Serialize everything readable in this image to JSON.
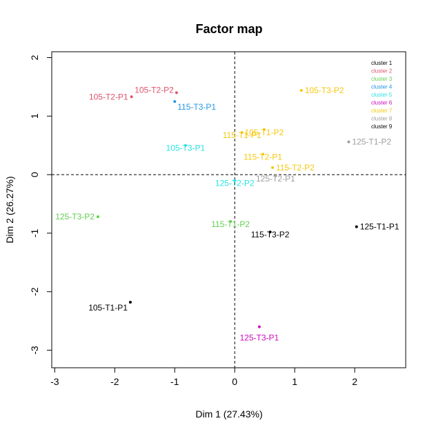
{
  "chart_data": {
    "type": "scatter",
    "title": "Factor map",
    "xlabel": "Dim 1 (27.43%)",
    "ylabel": "Dim 2 (26.27%)",
    "xlim": [
      -3.05,
      2.85
    ],
    "ylim": [
      -3.3,
      2.1
    ],
    "xticks": [
      "-3",
      "-2",
      "-1",
      "0",
      "1",
      "2"
    ],
    "yticks": [
      "-3",
      "-2",
      "-1",
      "0",
      "1",
      "2"
    ],
    "grid": false,
    "reference_lines": {
      "x": 0,
      "y": 0,
      "style": "dashed"
    },
    "legend": {
      "position": "top-right",
      "entries": [
        {
          "label": "cluster 1",
          "color": "#000000"
        },
        {
          "label": "cluster 2",
          "color": "#DF536B"
        },
        {
          "label": "cluster 3",
          "color": "#61D04F"
        },
        {
          "label": "cluster 4",
          "color": "#2297E6"
        },
        {
          "label": "cluster 5",
          "color": "#28E2E5"
        },
        {
          "label": "cluster 6",
          "color": "#CD0BBC"
        },
        {
          "label": "cluster 7",
          "color": "#F5C710"
        },
        {
          "label": "cluster 8",
          "color": "#9E9E9E"
        },
        {
          "label": "cluster 9",
          "color": "#000000"
        }
      ]
    },
    "points": [
      {
        "label": "105-T2-P1",
        "x": -1.72,
        "y": 1.33,
        "cluster": 2,
        "anchor": "left"
      },
      {
        "label": "105-T2-P2",
        "x": -0.97,
        "y": 1.4,
        "cluster": 2,
        "anchor": "above-left"
      },
      {
        "label": "115-T3-P1",
        "x": -1.0,
        "y": 1.25,
        "cluster": 4,
        "anchor": "below-right"
      },
      {
        "label": "105-T3-P1",
        "x": -0.82,
        "y": 0.5,
        "cluster": 5,
        "anchor": "center"
      },
      {
        "label": "125-T2-P2",
        "x": 0.0,
        "y": -0.1,
        "cluster": 5,
        "anchor": "center"
      },
      {
        "label": "105-T3-P2",
        "x": 1.11,
        "y": 1.44,
        "cluster": 7,
        "anchor": "right"
      },
      {
        "label": "105-T1-P2",
        "x": 0.49,
        "y": 0.77,
        "cluster": 7,
        "anchor": "center"
      },
      {
        "label": "115-T1-P1",
        "x": 0.12,
        "y": 0.72,
        "cluster": 7,
        "anchor": "center"
      },
      {
        "label": "115-T2-P1",
        "x": 0.47,
        "y": 0.35,
        "cluster": 7,
        "anchor": "center"
      },
      {
        "label": "115-T2-P2",
        "x": 0.63,
        "y": 0.12,
        "cluster": 7,
        "anchor": "right"
      },
      {
        "label": "125-T1-P2",
        "x": 1.9,
        "y": 0.56,
        "cluster": 8,
        "anchor": "right"
      },
      {
        "label": "125-T2-P1",
        "x": 0.68,
        "y": -0.02,
        "cluster": 8,
        "anchor": "center"
      },
      {
        "label": "125-T3-P2",
        "x": -2.28,
        "y": -0.72,
        "cluster": 3,
        "anchor": "left"
      },
      {
        "label": "115-T1-P2",
        "x": -0.07,
        "y": -0.8,
        "cluster": 3,
        "anchor": "center"
      },
      {
        "label": "115-T3-P2",
        "x": 0.59,
        "y": -0.98,
        "cluster": 9,
        "anchor": "center"
      },
      {
        "label": "125-T1-P1",
        "x": 2.03,
        "y": -0.89,
        "cluster": 9,
        "anchor": "right"
      },
      {
        "label": "105-T1-P1",
        "x": -1.74,
        "y": -2.18,
        "cluster": 1,
        "anchor": "below-left"
      },
      {
        "label": "125-T3-P1",
        "x": 0.41,
        "y": -2.6,
        "cluster": 6,
        "anchor": "below"
      }
    ]
  }
}
